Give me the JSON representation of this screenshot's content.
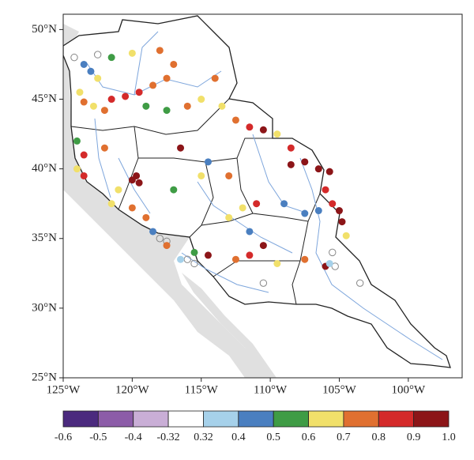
{
  "map": {
    "xlim": [
      -125,
      -96.1
    ],
    "ylim": [
      25,
      51.1
    ],
    "xticks": [
      {
        "value": -125,
        "label": "125°W"
      },
      {
        "value": -120,
        "label": "120°W"
      },
      {
        "value": -115,
        "label": "115°W"
      },
      {
        "value": -110,
        "label": "110°W"
      },
      {
        "value": -105,
        "label": "105°W"
      },
      {
        "value": -100,
        "label": "100°W"
      }
    ],
    "yticks": [
      {
        "value": 25,
        "label": "25°N"
      },
      {
        "value": 30,
        "label": "30°N"
      },
      {
        "value": 35,
        "label": "35°N"
      },
      {
        "value": 40,
        "label": "40°N"
      },
      {
        "value": 45,
        "label": "45°N"
      },
      {
        "value": 50,
        "label": "50°N"
      }
    ],
    "stations": {
      "lon": [
        -123.5,
        -123,
        -122.5,
        -123.8,
        -123.5,
        -122.8,
        -122,
        -121.5,
        -120.5,
        -119.5,
        -118.5,
        -117.5,
        -117,
        -118,
        -120,
        -121.5,
        -119,
        -117.5,
        -116,
        -115,
        -114,
        -113.5,
        -112.5,
        -111.5,
        -110.5,
        -109.5,
        -108.5,
        -107.5,
        -108.5,
        -106.5,
        -105.7,
        -106,
        -105.5,
        -105,
        -104.8,
        -104.5,
        -106.5,
        -107.5,
        -109,
        -111,
        -112,
        -113,
        -111.5,
        -113,
        -114.5,
        -116.5,
        -115,
        -117,
        -119.7,
        -120,
        -119.5,
        -121,
        -121.5,
        -120,
        -119,
        -118.5,
        -117.5,
        -116.5,
        -115.5,
        -114.5,
        -110.5,
        -111.5,
        -112.5,
        -109.5,
        -107.5,
        -106,
        -105.7,
        -124,
        -123.5,
        -124,
        -123.5,
        -122
      ],
      "lat": [
        47.5,
        47,
        46.5,
        45.5,
        44.8,
        44.5,
        44.2,
        45,
        45.2,
        45.5,
        46,
        46.5,
        47.5,
        48.5,
        48.3,
        48,
        44.5,
        44.2,
        44.5,
        45,
        46.5,
        44.5,
        43.5,
        43,
        42.8,
        42.5,
        41.5,
        40.5,
        40.3,
        40,
        39.8,
        38.5,
        37.5,
        37,
        36.2,
        35.2,
        37,
        36.8,
        37.5,
        37.5,
        37.2,
        36.5,
        35.5,
        39.5,
        40.5,
        41.5,
        39.5,
        38.5,
        39.5,
        39.2,
        39,
        38.5,
        37.5,
        37.2,
        36.5,
        35.5,
        34.5,
        33.5,
        34,
        33.8,
        34.5,
        33.8,
        33.5,
        33.2,
        33.5,
        33,
        33.2,
        42,
        41,
        40,
        39.5,
        41.5
      ],
      "value": [
        0.45,
        0.45,
        0.65,
        0.65,
        0.75,
        0.65,
        0.75,
        0.85,
        0.85,
        0.85,
        0.75,
        0.75,
        0.75,
        0.75,
        0.65,
        0.55,
        0.55,
        0.55,
        0.75,
        0.65,
        0.75,
        0.65,
        0.75,
        0.85,
        0.95,
        0.65,
        0.85,
        0.95,
        0.95,
        0.95,
        0.95,
        0.85,
        0.85,
        0.95,
        0.95,
        0.65,
        0.45,
        0.45,
        0.45,
        0.85,
        0.65,
        0.65,
        0.45,
        0.75,
        0.45,
        0.95,
        0.65,
        0.55,
        0.95,
        0.95,
        0.95,
        0.65,
        0.65,
        0.75,
        0.75,
        0.45,
        0.75,
        0.35,
        0.55,
        0.95,
        0.95,
        0.85,
        0.75,
        0.65,
        0.75,
        0.95,
        0.35,
        0.55,
        0.85,
        0.65,
        0.85,
        0.75
      ]
    },
    "insignificant": {
      "lon": [
        -124.2,
        -122.5,
        -118,
        -117.5,
        -116,
        -115.5,
        -110.5,
        -105.5,
        -105.3,
        -103.5
      ],
      "lat": [
        48,
        48.2,
        35,
        34.8,
        33.5,
        33.2,
        31.8,
        34,
        33,
        31.8
      ]
    },
    "colorbar": {
      "colors": [
        "#4b2a7e",
        "#8c5ca8",
        "#c9aed6",
        "#ffffff",
        "#a6d1ea",
        "#4a7fc0",
        "#3f9c45",
        "#f1e06a",
        "#e07030",
        "#d42a2a",
        "#8c1518"
      ],
      "ticks": [
        -0.6,
        -0.5,
        -0.4,
        -0.32,
        0.32,
        0.4,
        0.5,
        0.6,
        0.7,
        0.8,
        0.9,
        {
          "value": 1,
          "label": "1.0"
        }
      ]
    }
  }
}
